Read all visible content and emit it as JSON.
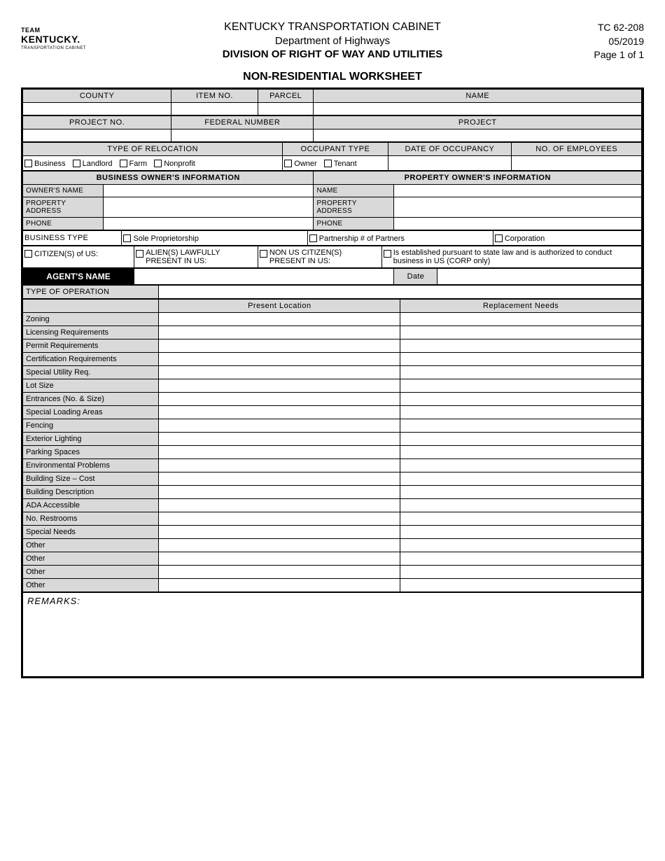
{
  "logo": {
    "top": "TEAM",
    "state": "KENTUCKY.",
    "sub": "TRANSPORTATION CABINET"
  },
  "header": {
    "line1": "KENTUCKY TRANSPORTATION CABINET",
    "line2": "Department of Highways",
    "line3": "DIVISION OF RIGHT OF WAY AND UTILITIES",
    "form_no": "TC 62-208",
    "date": "05/2019",
    "page": "Page 1 of 1"
  },
  "title": "NON-RESIDENTIAL WORKSHEET",
  "row1": {
    "county": "COUNTY",
    "item": "ITEM NO.",
    "parcel": "PARCEL",
    "name": "NAME"
  },
  "row2": {
    "project_no": "PROJECT NO.",
    "federal": "FEDERAL NUMBER",
    "project": "PROJECT"
  },
  "row3": {
    "type_reloc": "TYPE OF RELOCATION",
    "occupant": "OCCUPANT TYPE",
    "date_occ": "DATE OF OCCUPANCY",
    "num_emp": "NO. OF EMPLOYEES"
  },
  "reloc_opts": {
    "business": "Business",
    "landlord": "Landlord",
    "farm": "Farm",
    "nonprofit": "Nonprofit"
  },
  "occ_opts": {
    "owner": "Owner",
    "tenant": "Tenant"
  },
  "section_headers": {
    "bus_owner": "BUSINESS OWNER'S INFORMATION",
    "prop_owner": "PROPERTY OWNER'S INFORMATION"
  },
  "owner_labels": {
    "name": "OWNER'S NAME",
    "addr": "PROPERTY ADDRESS",
    "phone": "PHONE",
    "pname": "NAME",
    "paddr": "PROPERTY ADDRESS",
    "pphone": "PHONE"
  },
  "biz_type": {
    "label": "BUSINESS TYPE",
    "sole": "Sole Proprietorship",
    "partner": "Partnership # of Partners",
    "corp": "Corporation"
  },
  "citizen": {
    "us": "CITIZEN(S) of US:",
    "alien": "ALIEN(S) LAWFULLY PRESENT IN US:",
    "nonus": "NON US CITIZEN(S) PRESENT IN US:",
    "estab": "Is established pursuant to state law and is authorized to conduct business in US (CORP only)"
  },
  "agent": {
    "name": "AGENT'S NAME",
    "date": "Date"
  },
  "type_op": "TYPE OF OPERATION",
  "col_headers": {
    "present": "Present Location",
    "replace": "Replacement Needs"
  },
  "ops_rows": [
    "Zoning",
    "Licensing Requirements",
    "Permit Requirements",
    "Certification Requirements",
    "Special Utility Req.",
    "Lot Size",
    "Entrances (No. & Size)",
    "Special Loading Areas",
    "Fencing",
    "Exterior Lighting",
    "Parking Spaces",
    "Environmental Problems",
    "Building Size – Cost",
    "Building Description",
    "ADA Accessible",
    "No. Restrooms",
    "Special Needs",
    "Other",
    "Other",
    "Other",
    "Other"
  ],
  "remarks": "REMARKS:"
}
